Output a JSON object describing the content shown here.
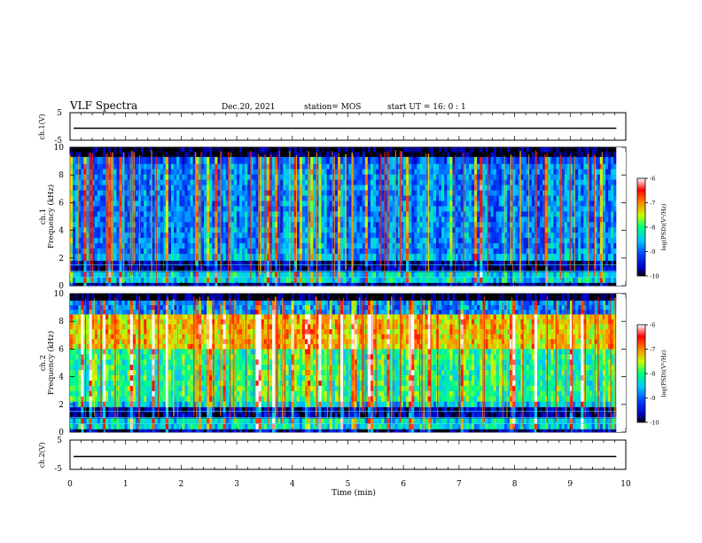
{
  "header": {
    "title": "VLF Spectra",
    "date": "Dec.20, 2021",
    "station": "station= MOS",
    "start_ut": "start  UT =   16: 0  : 1"
  },
  "chart_data": [
    {
      "type": "line",
      "panel": "ch1-voltage",
      "ylabel": "ch.1(V)",
      "ylim": [
        -5,
        5
      ],
      "yticks": [
        "5",
        "-5"
      ],
      "xlim": [
        0,
        10
      ],
      "x": [
        0,
        9.83
      ],
      "y": [
        0,
        0
      ]
    },
    {
      "type": "heatmap",
      "panel": "ch1-spectrogram",
      "ylabel": "ch.1",
      "ylabel2": "Frequency (kHz)",
      "ylim": [
        0,
        10
      ],
      "yticks": [
        "0",
        "2",
        "4",
        "6",
        "8",
        "10"
      ],
      "xlim": [
        0,
        10
      ],
      "data_end_min": 9.83,
      "colorbar": {
        "label": "log(PSD)(V²/Hz)",
        "range": [
          -10,
          -6
        ],
        "ticks": [
          "-6",
          "-7",
          "-8",
          "-9",
          "-10"
        ],
        "colors": [
          "#000000",
          "#0000c0",
          "#0040ff",
          "#00c8ff",
          "#00ff80",
          "#c8ff00",
          "#ff8000",
          "#ff0000",
          "#ffffff"
        ]
      },
      "bands": [
        {
          "f": [
            9.3,
            10.0
          ],
          "level": -10.0
        },
        {
          "f": [
            8.8,
            9.3
          ],
          "level": -9.2
        },
        {
          "f": [
            2.3,
            8.8
          ],
          "level": -9.0
        },
        {
          "f": [
            1.8,
            2.3
          ],
          "level": -8.8
        },
        {
          "f": [
            1.0,
            1.8
          ],
          "level": -9.8
        },
        {
          "f": [
            0.2,
            1.0
          ],
          "level": -8.6
        },
        {
          "f": [
            0.0,
            0.2
          ],
          "level": -9.8
        }
      ]
    },
    {
      "type": "heatmap",
      "panel": "ch2-spectrogram",
      "ylabel": "ch.2",
      "ylabel2": "Frequency (kHz)",
      "ylim": [
        0,
        10
      ],
      "yticks": [
        "0",
        "2",
        "4",
        "6",
        "8",
        "10"
      ],
      "xlim": [
        0,
        10
      ],
      "data_end_min": 9.83,
      "colorbar": {
        "label": "log(PSD)(V²/Hz)",
        "range": [
          -10,
          -6
        ],
        "ticks": [
          "-6",
          "-7",
          "-8",
          "-9",
          "-10"
        ],
        "colors": [
          "#000000",
          "#0000c0",
          "#0040ff",
          "#00c8ff",
          "#00ff80",
          "#c8ff00",
          "#ff8000",
          "#ff0000",
          "#ffffff"
        ]
      },
      "bands": [
        {
          "f": [
            9.5,
            10.0
          ],
          "level": -10.0
        },
        {
          "f": [
            8.5,
            9.5
          ],
          "level": -9.0
        },
        {
          "f": [
            6.0,
            8.5
          ],
          "level": -7.4
        },
        {
          "f": [
            2.2,
            6.0
          ],
          "level": -8.2
        },
        {
          "f": [
            1.8,
            2.2
          ],
          "level": -8.6
        },
        {
          "f": [
            1.0,
            1.8
          ],
          "level": -9.8
        },
        {
          "f": [
            0.2,
            1.0
          ],
          "level": -8.6
        },
        {
          "f": [
            0.0,
            0.2
          ],
          "level": -9.8
        }
      ]
    },
    {
      "type": "line",
      "panel": "ch2-voltage",
      "ylabel": "ch.2(V)",
      "ylim": [
        -5,
        5
      ],
      "yticks": [
        "5",
        "-5"
      ],
      "xlim": [
        0,
        10
      ],
      "x": [
        0,
        9.83
      ],
      "y": [
        0,
        0
      ]
    }
  ],
  "xaxis": {
    "label": "Time  (min)",
    "ticks": [
      "0",
      "1",
      "2",
      "3",
      "4",
      "5",
      "6",
      "7",
      "8",
      "9",
      "10"
    ]
  }
}
